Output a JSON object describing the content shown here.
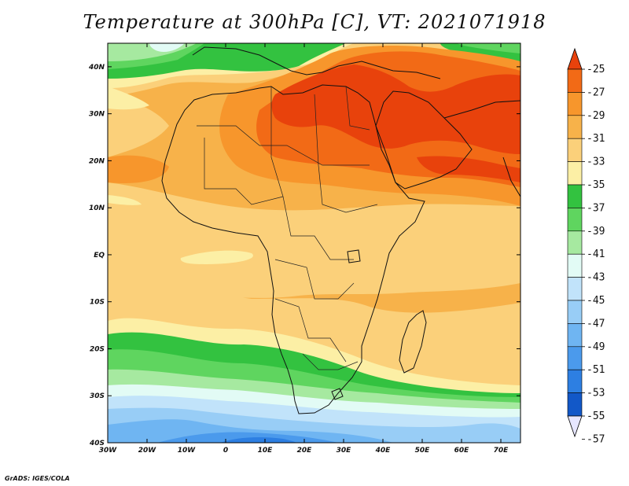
{
  "title": "Temperature at 300hPa [C], VT: 2021071918",
  "credit": "GrADS: IGES/COLA",
  "map": {
    "lon_range": [
      -30,
      75
    ],
    "lat_range": [
      -40,
      45
    ],
    "lat_ticks": [
      {
        "value": 40,
        "label": "40N"
      },
      {
        "value": 30,
        "label": "30N"
      },
      {
        "value": 20,
        "label": "20N"
      },
      {
        "value": 10,
        "label": "10N"
      },
      {
        "value": 0,
        "label": "EQ"
      },
      {
        "value": -10,
        "label": "10S"
      },
      {
        "value": -20,
        "label": "20S"
      },
      {
        "value": -30,
        "label": "30S"
      },
      {
        "value": -40,
        "label": "40S"
      }
    ],
    "lon_ticks": [
      {
        "value": -30,
        "label": "30W"
      },
      {
        "value": -20,
        "label": "20W"
      },
      {
        "value": -10,
        "label": "10W"
      },
      {
        "value": 0,
        "label": "0"
      },
      {
        "value": 10,
        "label": "10E"
      },
      {
        "value": 20,
        "label": "20E"
      },
      {
        "value": 30,
        "label": "30E"
      },
      {
        "value": 40,
        "label": "40E"
      },
      {
        "value": 50,
        "label": "50E"
      },
      {
        "value": 60,
        "label": "60E"
      },
      {
        "value": 70,
        "label": "70E"
      }
    ]
  },
  "colorbar": {
    "labels": [
      "-25",
      "-27",
      "-29",
      "-31",
      "-33",
      "-35",
      "-37",
      "-39",
      "-41",
      "-43",
      "-45",
      "-47",
      "-49",
      "-51",
      "-53",
      "-55",
      "-57"
    ],
    "colors": [
      "#e8420c",
      "#f26a16",
      "#f7962c",
      "#f7b24a",
      "#fbd07a",
      "#fcefa5",
      "#33c240",
      "#5fd55f",
      "#a6e9a0",
      "#e2fbf5",
      "#c1e3fa",
      "#98cdf6",
      "#6fb5f2",
      "#4b9aec",
      "#2d7fe2",
      "#1258c8",
      "#0a1f7a"
    ],
    "colors_note": "colors[0] is the top arrow (warmer than -25), colors[16] is the bottom arrow (colder than -57) shown pale; 15 inner bands in between"
  },
  "field_colors": {
    "c25": "#e8420c",
    "c27": "#f26a16",
    "c29": "#f7962c",
    "c31": "#f7b24a",
    "c33": "#fbd07a",
    "c35": "#fcefa5",
    "c37": "#33c240",
    "c39": "#5fd55f",
    "c41": "#a6e9a0",
    "c43": "#e2fbf5",
    "c45": "#c1e3fa",
    "c47": "#98cdf6",
    "c49": "#6fb5f2",
    "c51": "#4b9aec",
    "c53": "#2d7fe2"
  }
}
